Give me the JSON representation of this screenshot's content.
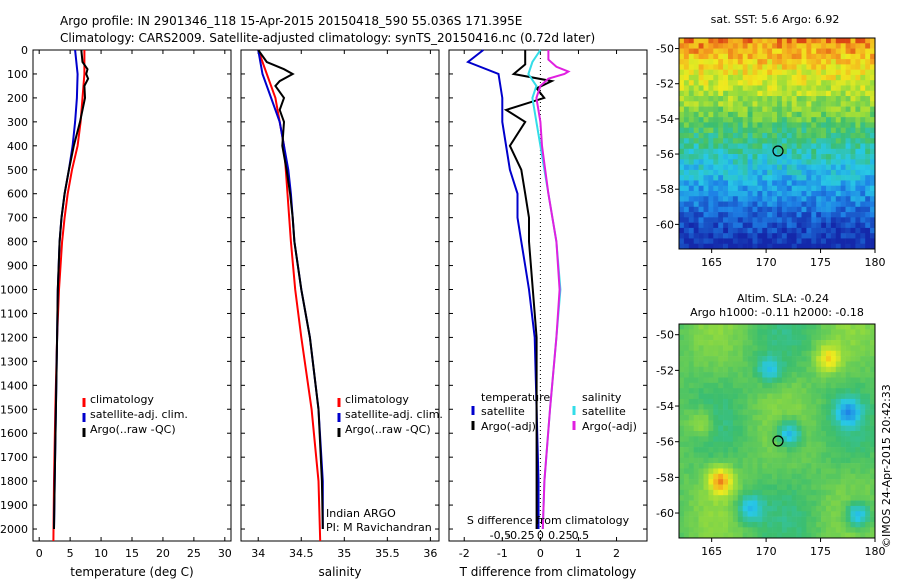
{
  "header": {
    "line1": "Argo profile: IN 2901346_118 15-Apr-2015 20150418_590 55.036S 171.395E",
    "line2": "Climatology: CARS2009. Satellite-adjusted climatology: synTS_20150416.nc (0.72d later)"
  },
  "colors": {
    "climatology": "#ff0000",
    "satellite": "#0000cc",
    "argo": "#000000",
    "sat_salinity": "#33dde8",
    "argo_salinity": "#e020e0"
  },
  "depth_ticks": [
    "0",
    "100",
    "200",
    "300",
    "400",
    "500",
    "600",
    "700",
    "800",
    "900",
    "1000",
    "1100",
    "1200",
    "1300",
    "1400",
    "1500",
    "1600",
    "1700",
    "1800",
    "1900",
    "2000"
  ],
  "chart_data": [
    {
      "type": "line",
      "name": "temperature",
      "xlabel": "temperature (deg C)",
      "ylabel": "depth",
      "xlim": [
        -1,
        31
      ],
      "ylim": [
        2050,
        0
      ],
      "xticks": [
        "0",
        "5",
        "10",
        "15",
        "20",
        "25",
        "30"
      ],
      "legend": [
        "climatology",
        "satellite-adj. clim.",
        "Argo(..raw -QC)"
      ],
      "series": [
        {
          "name": "climatology",
          "depth": [
            0,
            100,
            200,
            300,
            400,
            500,
            600,
            700,
            800,
            1000,
            1200,
            1500,
            1800,
            2050
          ],
          "values": [
            7.3,
            7.3,
            7.0,
            6.7,
            6.2,
            5.3,
            4.6,
            4.1,
            3.7,
            3.2,
            2.9,
            2.6,
            2.4,
            2.3
          ]
        },
        {
          "name": "satellite-adj. clim.",
          "depth": [
            0,
            100,
            200,
            300,
            400,
            500,
            600,
            700,
            800,
            1000,
            1200,
            1500,
            1800,
            2000
          ],
          "values": [
            5.8,
            6.2,
            6.1,
            5.8,
            5.4,
            4.8,
            4.1,
            3.6,
            3.3,
            3.0,
            2.9,
            2.7,
            2.5,
            2.4
          ]
        },
        {
          "name": "Argo(..raw -QC)",
          "depth": [
            0,
            50,
            80,
            100,
            120,
            150,
            200,
            250,
            300,
            400,
            500,
            600,
            700,
            800,
            1000,
            1200,
            1500,
            1800,
            2000
          ],
          "values": [
            6.8,
            7.0,
            7.8,
            7.6,
            7.9,
            7.3,
            7.4,
            7.0,
            6.6,
            5.6,
            4.8,
            4.1,
            3.6,
            3.3,
            3.0,
            2.9,
            2.7,
            2.5,
            2.4
          ]
        }
      ]
    },
    {
      "type": "line",
      "name": "salinity",
      "xlabel": "salinity",
      "xlim": [
        33.8,
        36.1
      ],
      "xticks": [
        "34",
        "34.5",
        "35",
        "35.5",
        "36"
      ],
      "legend": [
        "climatology",
        "satellite-adj. clim.",
        "Argo(..raw -QC)"
      ],
      "annotation": [
        "Indian ARGO",
        "PI: M Ravichandran"
      ],
      "series": [
        {
          "name": "climatology",
          "depth": [
            0,
            100,
            200,
            300,
            400,
            500,
            600,
            700,
            800,
            1000,
            1200,
            1500,
            1800,
            2050
          ],
          "values": [
            34.0,
            34.1,
            34.2,
            34.25,
            34.3,
            34.32,
            34.34,
            34.36,
            34.38,
            34.43,
            34.5,
            34.62,
            34.7,
            34.72
          ]
        },
        {
          "name": "satellite-adj. clim.",
          "depth": [
            0,
            100,
            200,
            300,
            400,
            500,
            600,
            700,
            800,
            1000,
            1200,
            1500,
            1800,
            2000
          ],
          "values": [
            34.0,
            34.05,
            34.15,
            34.25,
            34.3,
            34.35,
            34.38,
            34.4,
            34.42,
            34.5,
            34.6,
            34.7,
            34.75,
            34.75
          ]
        },
        {
          "name": "Argo(..raw -QC)",
          "depth": [
            0,
            50,
            80,
            100,
            130,
            150,
            200,
            250,
            300,
            400,
            500,
            600,
            700,
            800,
            1000,
            1200,
            1500,
            1800,
            2000
          ],
          "values": [
            34.0,
            34.1,
            34.3,
            34.4,
            34.25,
            34.2,
            34.3,
            34.25,
            34.3,
            34.28,
            34.33,
            34.37,
            34.4,
            34.42,
            34.5,
            34.6,
            34.7,
            34.74,
            34.75
          ]
        }
      ]
    },
    {
      "type": "line",
      "name": "differences",
      "xlabel": "T difference from climatology",
      "top_label": "S difference from climatology",
      "xlim": [
        -2.4,
        2.8
      ],
      "xticks": [
        "-2",
        "-1",
        "0",
        "1",
        "2"
      ],
      "sticks": [
        "-0.5",
        "-0.25",
        "0",
        "0.25",
        "0.5"
      ],
      "legend_temperature": [
        "temperature",
        "satellite",
        "Argo(-adj)"
      ],
      "legend_salinity": [
        "salinity",
        "satellite",
        "Argo(-adj)"
      ],
      "series": [
        {
          "name": "T satellite",
          "depth": [
            0,
            50,
            100,
            200,
            300,
            400,
            500,
            600,
            700,
            800,
            900,
            1000,
            1200,
            1500,
            1800,
            2000
          ],
          "values": [
            -1.5,
            -1.9,
            -1.1,
            -1.0,
            -1.0,
            -0.9,
            -0.8,
            -0.6,
            -0.6,
            -0.5,
            -0.4,
            -0.3,
            -0.15,
            -0.1,
            -0.05,
            -0.05
          ]
        },
        {
          "name": "T Argo(-adj)",
          "depth": [
            0,
            60,
            100,
            130,
            160,
            200,
            250,
            300,
            400,
            500,
            600,
            700,
            800,
            1000,
            1200,
            1500,
            1800,
            2000
          ],
          "values": [
            -0.4,
            -0.4,
            -0.7,
            0.3,
            -0.1,
            0.1,
            -0.9,
            -0.4,
            -0.8,
            -0.5,
            -0.4,
            -0.3,
            -0.3,
            -0.2,
            -0.1,
            -0.1,
            -0.1,
            -0.1
          ]
        },
        {
          "name": "S satellite",
          "depth": [
            0,
            50,
            100,
            150,
            200,
            300,
            400,
            500,
            600,
            700,
            800,
            1000,
            1200,
            1500,
            1800,
            2000
          ],
          "values": [
            0.0,
            -0.1,
            -0.15,
            -0.05,
            -0.1,
            -0.05,
            0.0,
            0.05,
            0.1,
            0.15,
            0.2,
            0.25,
            0.2,
            0.12,
            0.05,
            0.03
          ]
        },
        {
          "name": "S Argo(-adj)",
          "depth": [
            0,
            40,
            70,
            90,
            100,
            120,
            150,
            200,
            300,
            400,
            500,
            600,
            700,
            800,
            1000,
            1200,
            1500,
            1800,
            2000
          ],
          "values": [
            0.1,
            0.1,
            0.2,
            0.35,
            0.3,
            0.1,
            0.0,
            -0.05,
            0.0,
            0.02,
            0.06,
            0.1,
            0.15,
            0.2,
            0.24,
            0.2,
            0.12,
            0.05,
            0.03
          ]
        }
      ]
    }
  ],
  "maps": {
    "top": {
      "title": "sat. SST: 5.6 Argo: 6.92",
      "yticks": [
        "-50",
        "-52",
        "-54",
        "-56",
        "-58",
        "-60"
      ],
      "xticks": [
        "165",
        "170",
        "175",
        "180"
      ]
    },
    "bottom": {
      "title1": "Altim. SLA: -0.24",
      "title2": "Argo h1000: -0.11 h2000: -0.18",
      "yticks": [
        "-50",
        "-52",
        "-54",
        "-56",
        "-58",
        "-60"
      ],
      "xticks": [
        "165",
        "170",
        "175",
        "180"
      ]
    }
  },
  "footer": {
    "stamp": "©IMOS 24-Apr-2015 20:42:33"
  }
}
